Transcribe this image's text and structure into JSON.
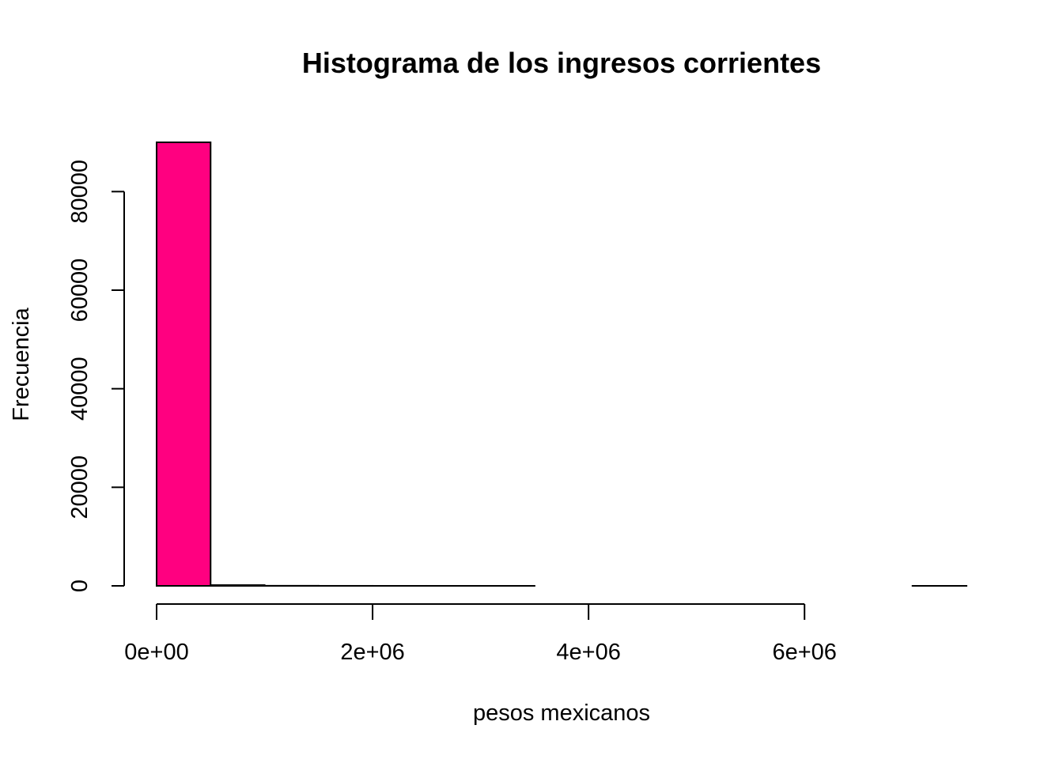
{
  "chart_data": {
    "type": "bar",
    "title": "Histograma de los ingresos corrientes",
    "xlabel": "pesos mexicanos",
    "ylabel": "Frecuencia",
    "bar_color": "#ff0080",
    "xlim": [
      0,
      7500000
    ],
    "ylim": [
      0,
      90000
    ],
    "x_ticks": [
      {
        "value": 0,
        "label": "0e+00"
      },
      {
        "value": 2000000,
        "label": "2e+06"
      },
      {
        "value": 4000000,
        "label": "4e+06"
      },
      {
        "value": 6000000,
        "label": "6e+06"
      }
    ],
    "y_ticks": [
      {
        "value": 0,
        "label": "0"
      },
      {
        "value": 20000,
        "label": "20000"
      },
      {
        "value": 40000,
        "label": "40000"
      },
      {
        "value": 60000,
        "label": "60000"
      },
      {
        "value": 80000,
        "label": "80000"
      }
    ],
    "bins": [
      {
        "x0": 0,
        "x1": 500000,
        "count": 90000
      },
      {
        "x0": 500000,
        "x1": 1000000,
        "count": 150
      },
      {
        "x0": 1000000,
        "x1": 1500000,
        "count": 20
      },
      {
        "x0": 1500000,
        "x1": 2000000,
        "count": 5
      },
      {
        "x0": 2000000,
        "x1": 2500000,
        "count": 2
      },
      {
        "x0": 2500000,
        "x1": 3000000,
        "count": 1
      },
      {
        "x0": 3000000,
        "x1": 3500000,
        "count": 1
      },
      {
        "x0": 3500000,
        "x1": 4000000,
        "count": 0
      },
      {
        "x0": 4000000,
        "x1": 4500000,
        "count": 0
      },
      {
        "x0": 4500000,
        "x1": 5000000,
        "count": 0
      },
      {
        "x0": 5000000,
        "x1": 5500000,
        "count": 0
      },
      {
        "x0": 5500000,
        "x1": 6000000,
        "count": 0
      },
      {
        "x0": 6000000,
        "x1": 6500000,
        "count": 0
      },
      {
        "x0": 6500000,
        "x1": 7000000,
        "count": 0
      },
      {
        "x0": 7000000,
        "x1": 7500000,
        "count": 1
      }
    ]
  }
}
